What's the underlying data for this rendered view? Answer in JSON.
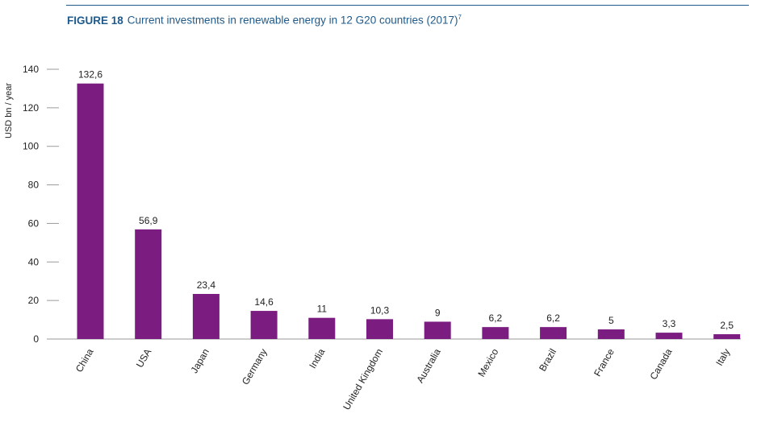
{
  "header": {
    "figure_label": "FIGURE 18",
    "title": "Current investments in renewable energy in 12 G20 countries (2017)",
    "footnote": "7"
  },
  "chart_data": {
    "type": "bar",
    "title": "Current investments in renewable energy in 12 G20 countries (2017)",
    "ylabel": "USD bn / year",
    "xlabel": "",
    "ylim": [
      0,
      140
    ],
    "yticks": [
      0,
      20,
      40,
      60,
      80,
      100,
      120,
      140
    ],
    "categories": [
      "China",
      "USA",
      "Japan",
      "Germany",
      "India",
      "United Kingdom",
      "Australia",
      "Mexico",
      "Brazil",
      "France",
      "Canada",
      "Italy"
    ],
    "values": [
      132.6,
      56.9,
      23.4,
      14.6,
      11,
      10.3,
      9,
      6.2,
      6.2,
      5,
      3.3,
      2.5
    ],
    "value_labels": [
      "132,6",
      "56,9",
      "23,4",
      "14,6",
      "11",
      "10,3",
      "9",
      "6,2",
      "6,2",
      "5",
      "3,3",
      "2,5"
    ],
    "bar_color": "#7b1c80",
    "grid": false,
    "legend": "none"
  }
}
